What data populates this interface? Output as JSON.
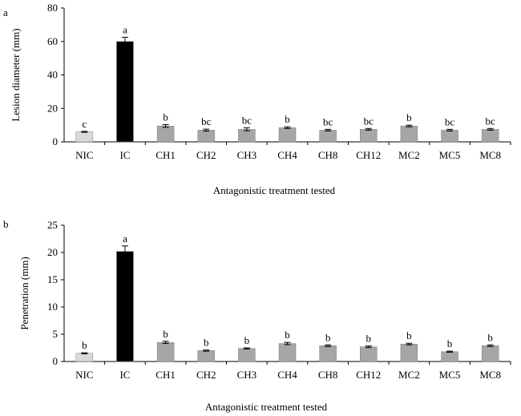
{
  "chart_data": [
    {
      "panel_label": "a",
      "type": "bar",
      "title": "",
      "xlabel": "Antagonistic  treatment tested",
      "ylabel": "Lesion diameter (mm)",
      "ylim": [
        0,
        80
      ],
      "yticks": [
        0,
        20,
        40,
        60,
        80
      ],
      "categories": [
        "NIC",
        "IC",
        "CH1",
        "CH2",
        "CH3",
        "CH4",
        "CH8",
        "CH12",
        "MC2",
        "MC5",
        "MC8"
      ],
      "values": [
        6,
        60,
        9.5,
        7,
        7.5,
        8.5,
        7,
        7.5,
        9.5,
        7,
        7.5
      ],
      "errors": [
        0.3,
        2.5,
        0.8,
        0.6,
        0.9,
        0.5,
        0.5,
        0.5,
        0.5,
        0.5,
        0.5
      ],
      "letters": [
        "c",
        "a",
        "b",
        "bc",
        "bc",
        "b",
        "bc",
        "bc",
        "b",
        "bc",
        "bc"
      ],
      "bar_colors": [
        "#d9d9d9",
        "#000000",
        "#a6a6a6",
        "#a6a6a6",
        "#a6a6a6",
        "#a6a6a6",
        "#a6a6a6",
        "#a6a6a6",
        "#a6a6a6",
        "#a6a6a6",
        "#a6a6a6"
      ]
    },
    {
      "panel_label": "b",
      "type": "bar",
      "title": "",
      "xlabel": "Antagonistic  treatment tested",
      "ylabel": "Penetration (mm)",
      "ylim": [
        0,
        25
      ],
      "yticks": [
        0,
        5,
        10,
        15,
        20,
        25
      ],
      "categories": [
        "NIC",
        "IC",
        "CH1",
        "CH2",
        "CH3",
        "CH4",
        "CH8",
        "CH12",
        "MC2",
        "MC5",
        "MC8"
      ],
      "values": [
        1.5,
        20.2,
        3.5,
        2.0,
        2.4,
        3.3,
        2.9,
        2.7,
        3.2,
        1.8,
        2.9
      ],
      "errors": [
        0.1,
        1.0,
        0.2,
        0.1,
        0.1,
        0.2,
        0.15,
        0.15,
        0.15,
        0.1,
        0.15
      ],
      "letters": [
        "b",
        "a",
        "b",
        "b",
        "b",
        "b",
        "b",
        "b",
        "b",
        "b",
        "b"
      ],
      "bar_colors": [
        "#d9d9d9",
        "#000000",
        "#a6a6a6",
        "#a6a6a6",
        "#a6a6a6",
        "#a6a6a6",
        "#a6a6a6",
        "#a6a6a6",
        "#a6a6a6",
        "#a6a6a6",
        "#a6a6a6"
      ]
    }
  ]
}
